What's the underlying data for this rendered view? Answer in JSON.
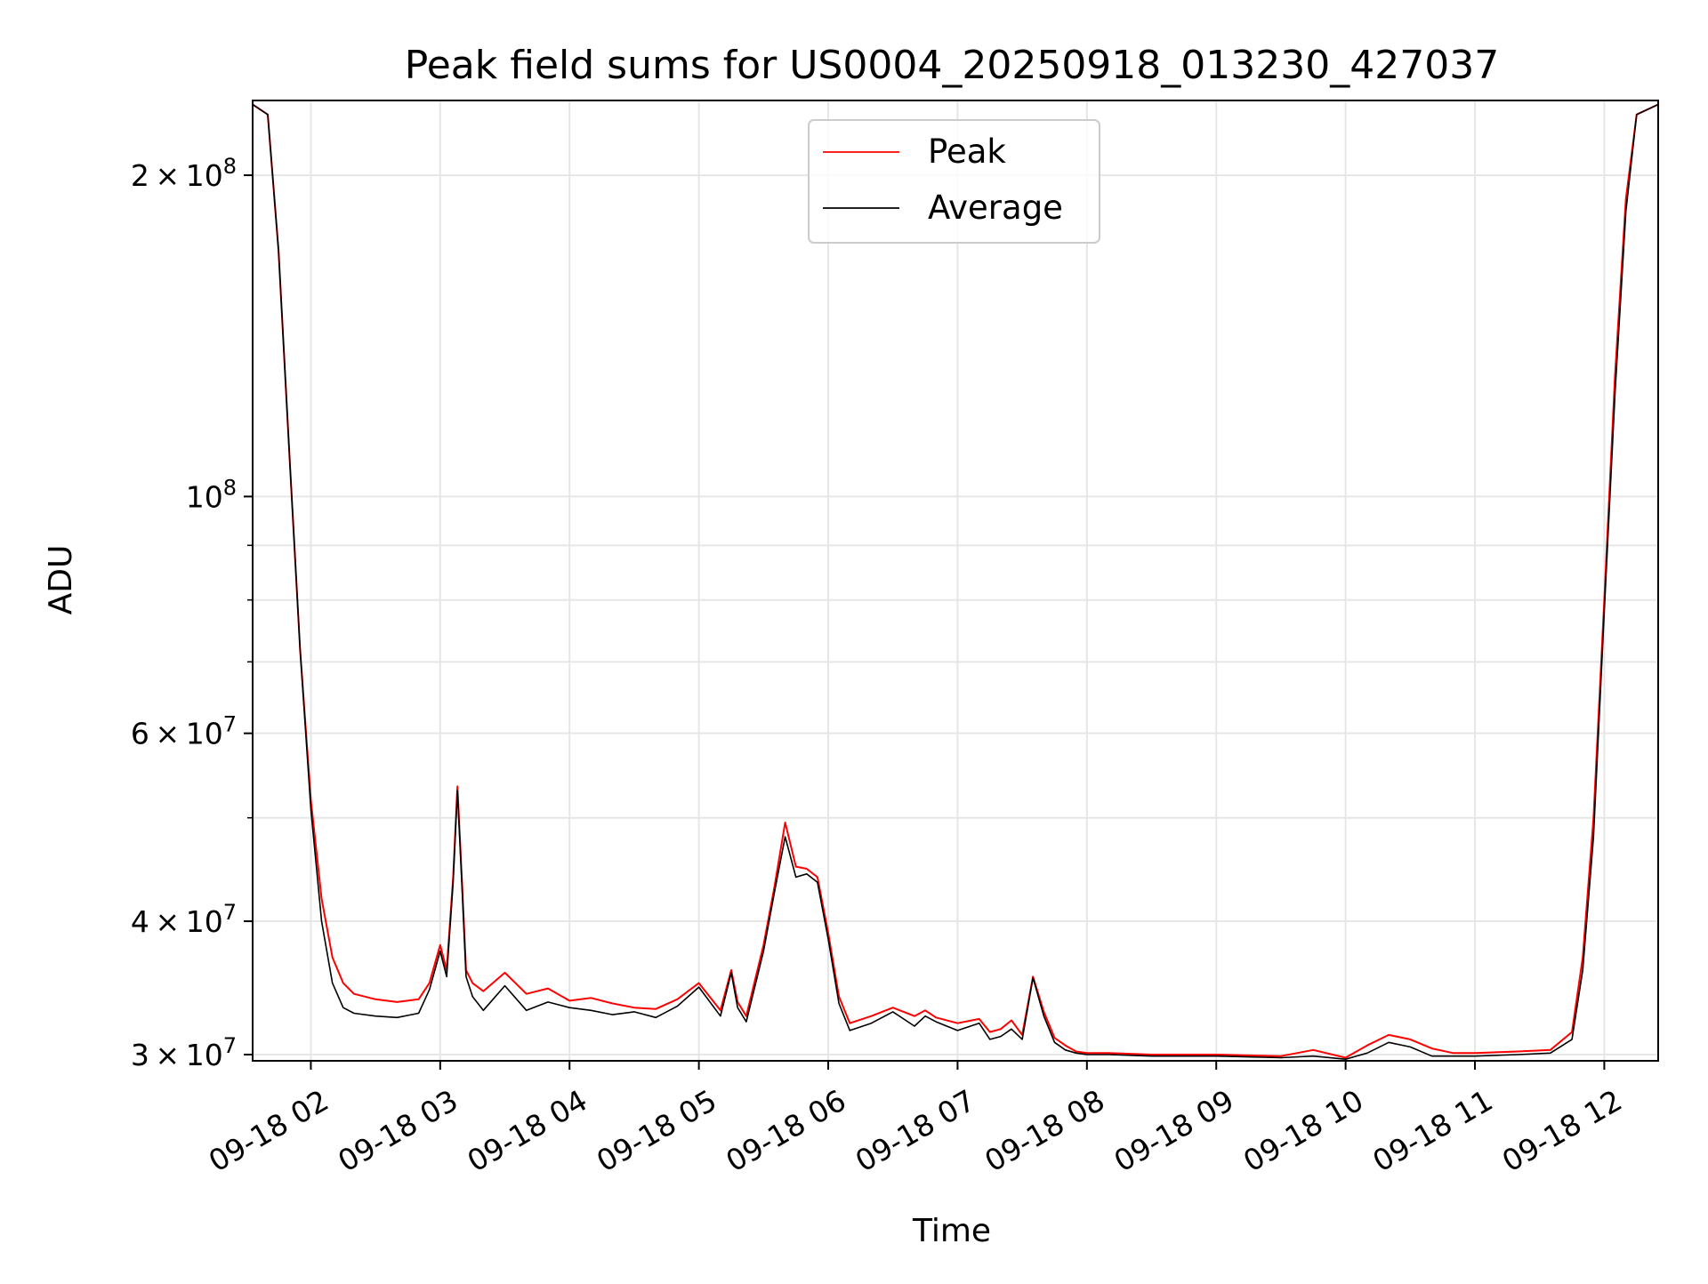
{
  "chart_data": {
    "type": "line",
    "title": "Peak field sums for US0004_20250918_013230_427037",
    "xlabel": "Time",
    "ylabel": "ADU",
    "yscale": "log",
    "grid": true,
    "legend_position": "top-center",
    "xlim": [
      "2025-09-18 01:33",
      "2025-09-18 12:25"
    ],
    "ylim": [
      29600000,
      235000000
    ],
    "x_ticks": [
      {
        "value": "2025-09-18 02:00",
        "label": "09-18 02"
      },
      {
        "value": "2025-09-18 03:00",
        "label": "09-18 03"
      },
      {
        "value": "2025-09-18 04:00",
        "label": "09-18 04"
      },
      {
        "value": "2025-09-18 05:00",
        "label": "09-18 05"
      },
      {
        "value": "2025-09-18 06:00",
        "label": "09-18 06"
      },
      {
        "value": "2025-09-18 07:00",
        "label": "09-18 07"
      },
      {
        "value": "2025-09-18 08:00",
        "label": "09-18 08"
      },
      {
        "value": "2025-09-18 09:00",
        "label": "09-18 09"
      },
      {
        "value": "2025-09-18 10:00",
        "label": "09-18 10"
      },
      {
        "value": "2025-09-18 11:00",
        "label": "09-18 11"
      },
      {
        "value": "2025-09-18 12:00",
        "label": "09-18 12"
      }
    ],
    "y_major_ticks": [
      {
        "value": 30000000,
        "mantissa": "3",
        "exponent": "7"
      },
      {
        "value": 40000000,
        "mantissa": "4",
        "exponent": "7"
      },
      {
        "value": 60000000,
        "mantissa": "6",
        "exponent": "7"
      },
      {
        "value": 100000000,
        "mantissa": "",
        "exponent": "8"
      },
      {
        "value": 200000000,
        "mantissa": "2",
        "exponent": "8"
      }
    ],
    "y_minor_ticks": [
      50000000,
      70000000,
      80000000,
      90000000
    ],
    "series": [
      {
        "name": "Peak",
        "color": "#ff0000",
        "x": [
          "2025-09-18 01:33",
          "2025-09-18 01:40",
          "2025-09-18 01:45",
          "2025-09-18 01:50",
          "2025-09-18 01:55",
          "2025-09-18 02:00",
          "2025-09-18 02:05",
          "2025-09-18 02:10",
          "2025-09-18 02:15",
          "2025-09-18 02:20",
          "2025-09-18 02:30",
          "2025-09-18 02:40",
          "2025-09-18 02:50",
          "2025-09-18 02:55",
          "2025-09-18 03:00",
          "2025-09-18 03:03",
          "2025-09-18 03:06",
          "2025-09-18 03:08",
          "2025-09-18 03:10",
          "2025-09-18 03:12",
          "2025-09-18 03:15",
          "2025-09-18 03:20",
          "2025-09-18 03:30",
          "2025-09-18 03:40",
          "2025-09-18 03:50",
          "2025-09-18 04:00",
          "2025-09-18 04:10",
          "2025-09-18 04:20",
          "2025-09-18 04:30",
          "2025-09-18 04:40",
          "2025-09-18 04:50",
          "2025-09-18 05:00",
          "2025-09-18 05:10",
          "2025-09-18 05:15",
          "2025-09-18 05:18",
          "2025-09-18 05:22",
          "2025-09-18 05:30",
          "2025-09-18 05:35",
          "2025-09-18 05:40",
          "2025-09-18 05:45",
          "2025-09-18 05:50",
          "2025-09-18 05:55",
          "2025-09-18 06:00",
          "2025-09-18 06:05",
          "2025-09-18 06:10",
          "2025-09-18 06:20",
          "2025-09-18 06:30",
          "2025-09-18 06:40",
          "2025-09-18 06:45",
          "2025-09-18 06:50",
          "2025-09-18 07:00",
          "2025-09-18 07:10",
          "2025-09-18 07:15",
          "2025-09-18 07:20",
          "2025-09-18 07:25",
          "2025-09-18 07:30",
          "2025-09-18 07:35",
          "2025-09-18 07:40",
          "2025-09-18 07:45",
          "2025-09-18 07:50",
          "2025-09-18 07:55",
          "2025-09-18 08:00",
          "2025-09-18 08:10",
          "2025-09-18 08:30",
          "2025-09-18 09:00",
          "2025-09-18 09:30",
          "2025-09-18 09:45",
          "2025-09-18 10:00",
          "2025-09-18 10:10",
          "2025-09-18 10:20",
          "2025-09-18 10:30",
          "2025-09-18 10:40",
          "2025-09-18 10:50",
          "2025-09-18 11:00",
          "2025-09-18 11:20",
          "2025-09-18 11:35",
          "2025-09-18 11:45",
          "2025-09-18 11:50",
          "2025-09-18 11:55",
          "2025-09-18 12:00",
          "2025-09-18 12:05",
          "2025-09-18 12:10",
          "2025-09-18 12:15",
          "2025-09-18 12:25"
        ],
        "y": [
          233000000,
          228000000,
          170000000,
          110000000,
          72000000,
          52000000,
          42000000,
          37000000,
          35000000,
          34200000,
          33800000,
          33600000,
          33800000,
          35000000,
          38000000,
          36000000,
          44000000,
          53500000,
          44000000,
          36000000,
          35000000,
          34400000,
          35800000,
          34200000,
          34600000,
          33700000,
          33900000,
          33500000,
          33200000,
          33100000,
          33800000,
          35000000,
          33000000,
          36000000,
          33600000,
          32600000,
          38000000,
          43000000,
          49500000,
          45000000,
          44800000,
          44000000,
          39000000,
          34000000,
          32100000,
          32600000,
          33200000,
          32600000,
          33000000,
          32500000,
          32100000,
          32400000,
          31500000,
          31700000,
          32300000,
          31300000,
          35500000,
          32900000,
          31100000,
          30600000,
          30200000,
          30100000,
          30100000,
          30000000,
          30000000,
          29900000,
          30300000,
          29800000,
          30600000,
          31300000,
          31000000,
          30400000,
          30100000,
          30100000,
          30200000,
          30300000,
          31500000,
          37000000,
          50000000,
          80000000,
          130000000,
          190000000,
          228000000,
          233000000
        ]
      },
      {
        "name": "Average",
        "color": "#000000",
        "x": [
          "2025-09-18 01:33",
          "2025-09-18 01:40",
          "2025-09-18 01:45",
          "2025-09-18 01:50",
          "2025-09-18 01:55",
          "2025-09-18 02:00",
          "2025-09-18 02:05",
          "2025-09-18 02:10",
          "2025-09-18 02:15",
          "2025-09-18 02:20",
          "2025-09-18 02:30",
          "2025-09-18 02:40",
          "2025-09-18 02:50",
          "2025-09-18 02:55",
          "2025-09-18 03:00",
          "2025-09-18 03:03",
          "2025-09-18 03:06",
          "2025-09-18 03:08",
          "2025-09-18 03:10",
          "2025-09-18 03:12",
          "2025-09-18 03:15",
          "2025-09-18 03:20",
          "2025-09-18 03:30",
          "2025-09-18 03:40",
          "2025-09-18 03:50",
          "2025-09-18 04:00",
          "2025-09-18 04:10",
          "2025-09-18 04:20",
          "2025-09-18 04:30",
          "2025-09-18 04:40",
          "2025-09-18 04:50",
          "2025-09-18 05:00",
          "2025-09-18 05:10",
          "2025-09-18 05:15",
          "2025-09-18 05:18",
          "2025-09-18 05:22",
          "2025-09-18 05:30",
          "2025-09-18 05:35",
          "2025-09-18 05:40",
          "2025-09-18 05:45",
          "2025-09-18 05:50",
          "2025-09-18 05:55",
          "2025-09-18 06:00",
          "2025-09-18 06:05",
          "2025-09-18 06:10",
          "2025-09-18 06:20",
          "2025-09-18 06:30",
          "2025-09-18 06:40",
          "2025-09-18 06:45",
          "2025-09-18 06:50",
          "2025-09-18 07:00",
          "2025-09-18 07:10",
          "2025-09-18 07:15",
          "2025-09-18 07:20",
          "2025-09-18 07:25",
          "2025-09-18 07:30",
          "2025-09-18 07:35",
          "2025-09-18 07:40",
          "2025-09-18 07:45",
          "2025-09-18 07:50",
          "2025-09-18 07:55",
          "2025-09-18 08:00",
          "2025-09-18 08:10",
          "2025-09-18 08:30",
          "2025-09-18 09:00",
          "2025-09-18 09:30",
          "2025-09-18 09:45",
          "2025-09-18 10:00",
          "2025-09-18 10:10",
          "2025-09-18 10:20",
          "2025-09-18 10:30",
          "2025-09-18 10:40",
          "2025-09-18 10:50",
          "2025-09-18 11:00",
          "2025-09-18 11:20",
          "2025-09-18 11:35",
          "2025-09-18 11:45",
          "2025-09-18 11:50",
          "2025-09-18 11:55",
          "2025-09-18 12:00",
          "2025-09-18 12:05",
          "2025-09-18 12:10",
          "2025-09-18 12:15",
          "2025-09-18 12:25"
        ],
        "y": [
          233000000,
          228000000,
          170000000,
          110000000,
          72000000,
          51000000,
          40000000,
          35000000,
          33200000,
          32800000,
          32600000,
          32500000,
          32800000,
          34500000,
          37500000,
          35500000,
          43500000,
          53000000,
          43500000,
          35500000,
          34000000,
          33000000,
          34800000,
          33000000,
          33600000,
          33200000,
          33000000,
          32700000,
          32900000,
          32500000,
          33300000,
          34700000,
          32600000,
          35800000,
          33200000,
          32200000,
          37500000,
          42500000,
          48000000,
          44000000,
          44300000,
          43500000,
          38500000,
          33500000,
          31600000,
          32100000,
          32900000,
          31900000,
          32600000,
          32200000,
          31600000,
          32100000,
          31000000,
          31200000,
          31700000,
          31000000,
          35400000,
          32600000,
          30800000,
          30300000,
          30100000,
          30000000,
          30000000,
          29900000,
          29900000,
          29800000,
          29900000,
          29700000,
          30100000,
          30800000,
          30500000,
          29900000,
          29900000,
          29900000,
          30000000,
          30100000,
          31000000,
          36000000,
          48000000,
          78000000,
          125000000,
          185000000,
          228000000,
          233000000
        ]
      }
    ]
  }
}
